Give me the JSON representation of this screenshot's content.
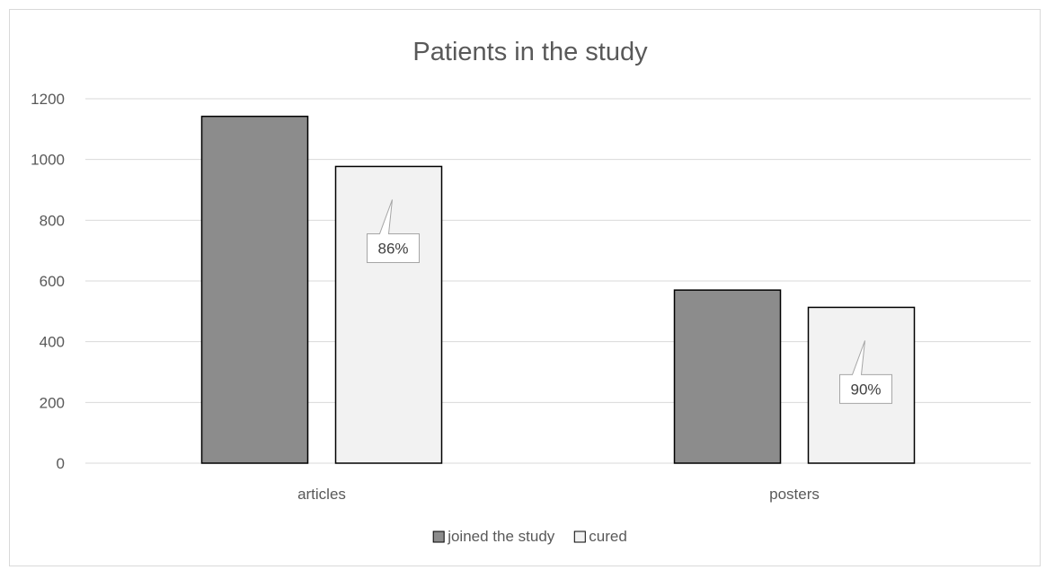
{
  "chart_data": {
    "type": "bar",
    "title": "Patients in the study",
    "categories": [
      "articles",
      "posters"
    ],
    "series": [
      {
        "name": "joined the study",
        "values": [
          1142,
          570
        ],
        "color": "#8c8c8c"
      },
      {
        "name": "cured",
        "values": [
          977,
          513
        ],
        "color": "#f2f2f2"
      }
    ],
    "data_labels": [
      {
        "category": "articles",
        "series": "cured",
        "text": "86%"
      },
      {
        "category": "posters",
        "series": "cured",
        "text": "90%"
      }
    ],
    "ylim": [
      0,
      1200
    ],
    "yticks": [
      0,
      200,
      400,
      600,
      800,
      1000,
      1200
    ],
    "xlabel": "",
    "ylabel": "",
    "grid": true,
    "legend_position": "bottom"
  }
}
